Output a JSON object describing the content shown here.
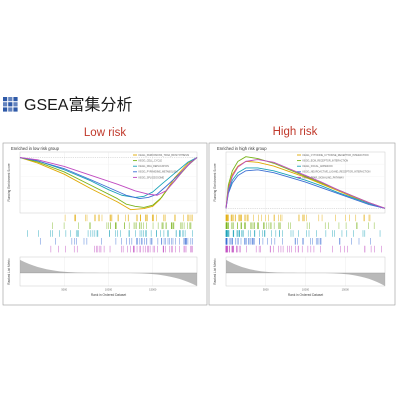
{
  "header": {
    "title": "GSEA富集分析",
    "squares_color": "#2f5aa8"
  },
  "chart_data": [
    {
      "type": "line",
      "label": "Low risk",
      "title": "Enriched in low risk group",
      "ylabel_es": "Running Enrichment Score",
      "ylabel_rank": "Ranked List Metric",
      "xlabel": "Rank in Ordered Dataset",
      "x_ticks": [
        "5000",
        "10000",
        "15000"
      ],
      "x_range": [
        0,
        20000
      ],
      "es_ylim": [
        -0.5,
        0.05
      ],
      "grid": true,
      "legend_position": "top-right",
      "series": [
        {
          "name": "KEGG_PARKINSONS_TRNA_BIOSYNTHESIS",
          "color": "#e0a800",
          "x": [
            0,
            2000,
            5000,
            8000,
            11000,
            12500,
            14000,
            15000,
            15800,
            16500,
            17500,
            19000,
            20000
          ],
          "values": [
            0.0,
            -0.05,
            -0.15,
            -0.28,
            -0.4,
            -0.47,
            -0.46,
            -0.44,
            -0.38,
            -0.3,
            -0.18,
            -0.05,
            0.0
          ]
        },
        {
          "name": "KEGG_CELL_CYCLE",
          "color": "#7ab41d",
          "x": [
            0,
            2000,
            5000,
            8000,
            11000,
            12000,
            13000,
            14000,
            15000,
            16000,
            17000,
            19000,
            20000
          ],
          "values": [
            0.0,
            -0.04,
            -0.13,
            -0.25,
            -0.37,
            -0.42,
            -0.44,
            -0.45,
            -0.43,
            -0.36,
            -0.25,
            -0.07,
            0.0
          ]
        },
        {
          "name": "KEGG_DNA_REPLICATION",
          "color": "#1aa2b8",
          "x": [
            0,
            2000,
            5000,
            8000,
            10000,
            11500,
            13000,
            14000,
            15000,
            16000,
            17500,
            19000,
            20000
          ],
          "values": [
            0.0,
            -0.03,
            -0.11,
            -0.21,
            -0.29,
            -0.34,
            -0.36,
            -0.35,
            -0.31,
            -0.24,
            -0.14,
            -0.04,
            0.0
          ]
        },
        {
          "name": "KEGG_PYRIMIDINE_METABOLISM",
          "color": "#3b6fd4",
          "x": [
            0,
            2000,
            5000,
            8000,
            10000,
            12000,
            13500,
            14500,
            15500,
            16500,
            18000,
            19200,
            20000
          ],
          "values": [
            0.0,
            -0.03,
            -0.1,
            -0.2,
            -0.27,
            -0.34,
            -0.37,
            -0.36,
            -0.33,
            -0.26,
            -0.15,
            -0.05,
            0.0
          ]
        },
        {
          "name": "KEGG_SPLICEOSOME",
          "color": "#c04ac0",
          "x": [
            0,
            2000,
            5000,
            8000,
            11000,
            13000,
            14500,
            15500,
            16500,
            17500,
            18500,
            19500,
            20000
          ],
          "values": [
            0.0,
            -0.02,
            -0.08,
            -0.16,
            -0.24,
            -0.3,
            -0.33,
            -0.34,
            -0.3,
            -0.21,
            -0.11,
            -0.03,
            0.0
          ]
        }
      ]
    },
    {
      "type": "line",
      "label": "High risk",
      "title": "Enriched in high risk group",
      "ylabel_es": "Running Enrichment Score",
      "ylabel_rank": "Ranked List Metric",
      "xlabel": "Rank in Ordered Dataset",
      "x_ticks": [
        "5000",
        "10000",
        "15000"
      ],
      "x_range": [
        0,
        20000
      ],
      "es_ylim": [
        -0.05,
        0.6
      ],
      "grid": true,
      "legend_position": "top-right",
      "series": [
        {
          "name": "KEGG_CYTOKINE_CYTOKINE_RECEPTOR_INTERACTION",
          "color": "#e0a800",
          "x": [
            0,
            300,
            800,
            1500,
            2500,
            4000,
            6000,
            8000,
            10000,
            12000,
            14000,
            16000,
            18000,
            20000
          ],
          "values": [
            0.0,
            0.22,
            0.36,
            0.45,
            0.5,
            0.49,
            0.45,
            0.39,
            0.33,
            0.26,
            0.19,
            0.12,
            0.05,
            0.0
          ]
        },
        {
          "name": "KEGG_ECM_RECEPTOR_INTERACTION",
          "color": "#7ab41d",
          "x": [
            0,
            300,
            800,
            1500,
            2500,
            4000,
            6000,
            8000,
            10000,
            12000,
            14000,
            16000,
            18000,
            20000
          ],
          "values": [
            0.0,
            0.25,
            0.4,
            0.5,
            0.55,
            0.53,
            0.48,
            0.41,
            0.34,
            0.27,
            0.2,
            0.13,
            0.06,
            0.0
          ]
        },
        {
          "name": "KEGG_FOCAL_ADHESION",
          "color": "#1aa2b8",
          "x": [
            0,
            300,
            800,
            1500,
            2500,
            4000,
            6000,
            8000,
            10000,
            12000,
            14000,
            16000,
            18000,
            20000
          ],
          "values": [
            0.0,
            0.18,
            0.3,
            0.38,
            0.43,
            0.43,
            0.4,
            0.35,
            0.3,
            0.24,
            0.17,
            0.11,
            0.05,
            0.0
          ]
        },
        {
          "name": "KEGG_NEUROACTIVE_LIGAND_RECEPTOR_INTERACTION",
          "color": "#3b6fd4",
          "x": [
            0,
            300,
            800,
            1500,
            2500,
            4000,
            6000,
            8000,
            10000,
            12000,
            14000,
            16000,
            18000,
            20000
          ],
          "values": [
            0.0,
            0.16,
            0.27,
            0.35,
            0.4,
            0.41,
            0.38,
            0.33,
            0.28,
            0.22,
            0.16,
            0.1,
            0.04,
            0.0
          ]
        },
        {
          "name": "KEGG_PPAR_SIGNALING_PATHWAY",
          "color": "#c04ac0",
          "x": [
            0,
            300,
            800,
            1500,
            2500,
            4000,
            6000,
            8000,
            10000,
            12000,
            14000,
            16000,
            18000,
            20000
          ],
          "values": [
            0.0,
            0.2,
            0.34,
            0.44,
            0.5,
            0.52,
            0.49,
            0.42,
            0.35,
            0.28,
            0.2,
            0.13,
            0.06,
            0.0
          ]
        }
      ]
    }
  ]
}
